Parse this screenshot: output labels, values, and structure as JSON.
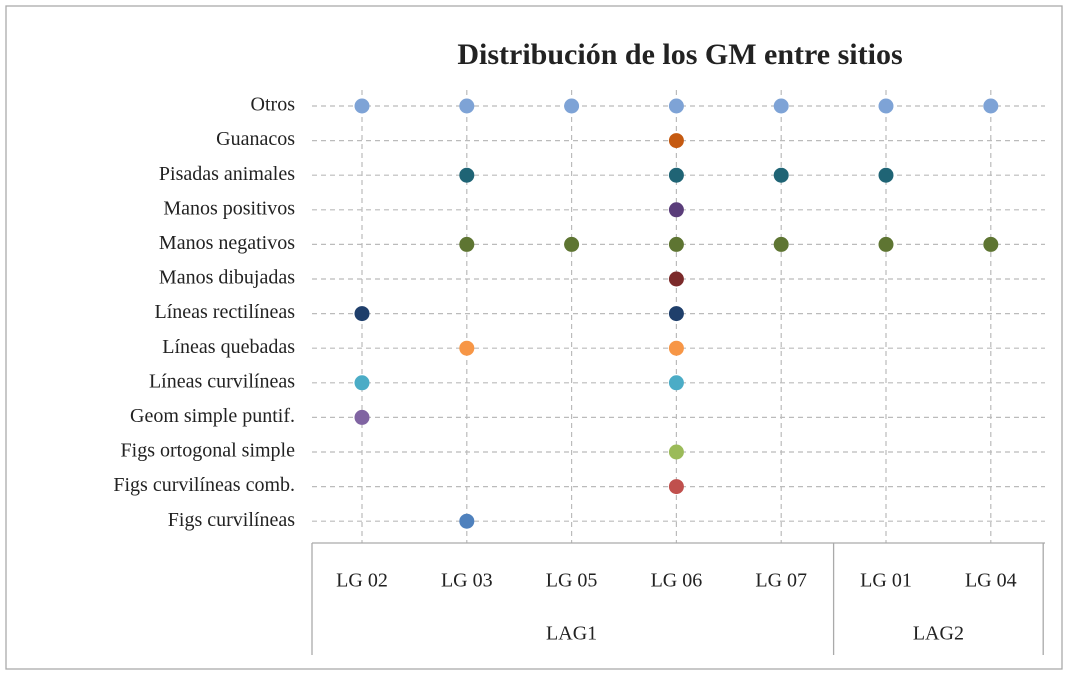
{
  "chart_data": {
    "type": "dotmatrix",
    "title": "Distribución de los GM entre sitios",
    "groups": [
      {
        "name": "LAG1",
        "categories": [
          "LG 02",
          "LG 03",
          "LG 05",
          "LG 06",
          "LG 07"
        ]
      },
      {
        "name": "LAG2",
        "categories": [
          "LG 01",
          "LG 04"
        ]
      }
    ],
    "series": [
      {
        "name": "Otros",
        "color": "#7ea3d6",
        "values": [
          1,
          1,
          1,
          1,
          1,
          1,
          1
        ]
      },
      {
        "name": "Guanacos",
        "color": "#c55a11",
        "values": [
          null,
          null,
          null,
          1,
          null,
          null,
          null
        ]
      },
      {
        "name": "Pisadas animales",
        "color": "#1f6475",
        "values": [
          null,
          1,
          null,
          1,
          1,
          1,
          null
        ]
      },
      {
        "name": "Manos positivos",
        "color": "#5a3d7a",
        "values": [
          null,
          null,
          null,
          1,
          null,
          null,
          null
        ]
      },
      {
        "name": "Manos negativos",
        "color": "#5e7532",
        "values": [
          null,
          1,
          1,
          1,
          1,
          1,
          1
        ]
      },
      {
        "name": "Manos dibujadas",
        "color": "#7b2a2a",
        "values": [
          null,
          null,
          null,
          1,
          null,
          null,
          null
        ]
      },
      {
        "name": "Líneas rectilíneas",
        "color": "#1f3f6b",
        "values": [
          1,
          null,
          null,
          1,
          null,
          null,
          null
        ]
      },
      {
        "name": "Líneas quebadas",
        "color": "#f79646",
        "values": [
          null,
          1,
          null,
          1,
          null,
          null,
          null
        ]
      },
      {
        "name": "Líneas curvilíneas",
        "color": "#4bacc6",
        "values": [
          1,
          null,
          null,
          1,
          null,
          null,
          null
        ]
      },
      {
        "name": "Geom simple puntif.",
        "color": "#8064a2",
        "values": [
          1,
          null,
          null,
          null,
          null,
          null,
          null
        ]
      },
      {
        "name": "Figs ortogonal simple",
        "color": "#9bbb59",
        "values": [
          null,
          null,
          null,
          1,
          null,
          null,
          null
        ]
      },
      {
        "name": "Figs curvilíneas comb.",
        "color": "#c0504d",
        "values": [
          null,
          null,
          null,
          1,
          null,
          null,
          null
        ]
      },
      {
        "name": "Figs curvilíneas",
        "color": "#4f81bd",
        "values": [
          null,
          1,
          null,
          null,
          null,
          null,
          null
        ]
      }
    ],
    "grid": true
  }
}
